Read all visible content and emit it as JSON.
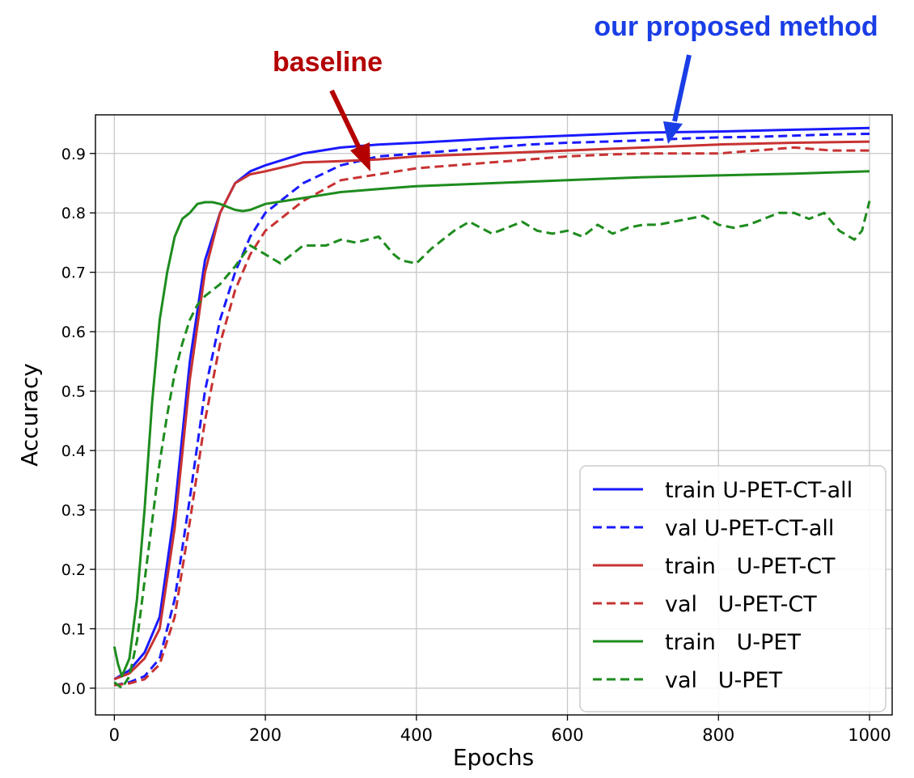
{
  "chart_data": {
    "type": "line",
    "xlabel": "Epochs",
    "ylabel": "Accuracy",
    "xlim": [
      -25,
      1030
    ],
    "ylim": [
      -0.045,
      0.965
    ],
    "xticks": [
      0,
      200,
      400,
      600,
      800,
      1000
    ],
    "yticks": [
      0.0,
      0.1,
      0.2,
      0.3,
      0.4,
      0.5,
      0.6,
      0.7,
      0.8,
      0.9
    ],
    "grid": true,
    "legend_position": "lower-right",
    "series": [
      {
        "name": "train U-PET-CT-all",
        "color": "#1a1aff",
        "dash": "solid",
        "x": [
          0,
          20,
          40,
          60,
          80,
          100,
          120,
          140,
          160,
          180,
          200,
          250,
          300,
          350,
          400,
          500,
          600,
          700,
          800,
          900,
          1000
        ],
        "y": [
          0.015,
          0.03,
          0.06,
          0.12,
          0.3,
          0.55,
          0.72,
          0.8,
          0.85,
          0.87,
          0.88,
          0.9,
          0.91,
          0.915,
          0.918,
          0.925,
          0.93,
          0.935,
          0.937,
          0.94,
          0.943
        ]
      },
      {
        "name": "val U-PET-CT-all",
        "color": "#1a1aff",
        "dash": "dashed",
        "x": [
          0,
          20,
          40,
          60,
          80,
          100,
          120,
          140,
          160,
          180,
          200,
          250,
          300,
          350,
          400,
          450,
          500,
          550,
          600,
          650,
          700,
          750,
          800,
          850,
          900,
          950,
          1000
        ],
        "y": [
          0.005,
          0.01,
          0.02,
          0.05,
          0.15,
          0.32,
          0.5,
          0.62,
          0.7,
          0.76,
          0.8,
          0.85,
          0.88,
          0.895,
          0.9,
          0.905,
          0.91,
          0.915,
          0.918,
          0.92,
          0.922,
          0.925,
          0.927,
          0.928,
          0.93,
          0.932,
          0.933
        ]
      },
      {
        "name": "train   U-PET-CT",
        "color": "#c83232",
        "dash": "solid",
        "x": [
          0,
          20,
          40,
          60,
          80,
          100,
          120,
          140,
          160,
          180,
          200,
          250,
          300,
          350,
          400,
          500,
          600,
          700,
          800,
          900,
          1000
        ],
        "y": [
          0.015,
          0.025,
          0.05,
          0.1,
          0.27,
          0.52,
          0.7,
          0.8,
          0.85,
          0.865,
          0.87,
          0.885,
          0.887,
          0.89,
          0.895,
          0.9,
          0.905,
          0.91,
          0.915,
          0.918,
          0.92
        ]
      },
      {
        "name": "val   U-PET-CT",
        "color": "#c83232",
        "dash": "dashed",
        "x": [
          0,
          20,
          40,
          60,
          80,
          100,
          120,
          140,
          160,
          180,
          200,
          250,
          300,
          350,
          400,
          450,
          500,
          550,
          600,
          650,
          700,
          750,
          800,
          850,
          900,
          950,
          1000
        ],
        "y": [
          0.005,
          0.008,
          0.015,
          0.04,
          0.12,
          0.28,
          0.45,
          0.58,
          0.67,
          0.73,
          0.77,
          0.82,
          0.855,
          0.865,
          0.875,
          0.88,
          0.885,
          0.89,
          0.895,
          0.898,
          0.9,
          0.9,
          0.9,
          0.905,
          0.91,
          0.905,
          0.905
        ]
      },
      {
        "name": "train   U-PET",
        "color": "#1e8c1e",
        "dash": "solid",
        "x": [
          0,
          5,
          10,
          20,
          30,
          40,
          50,
          60,
          70,
          80,
          90,
          100,
          110,
          120,
          130,
          140,
          150,
          160,
          170,
          180,
          200,
          250,
          300,
          350,
          400,
          500,
          600,
          700,
          800,
          900,
          1000
        ],
        "y": [
          0.07,
          0.04,
          0.02,
          0.05,
          0.15,
          0.3,
          0.48,
          0.62,
          0.7,
          0.76,
          0.79,
          0.8,
          0.815,
          0.818,
          0.818,
          0.815,
          0.81,
          0.805,
          0.803,
          0.805,
          0.815,
          0.825,
          0.835,
          0.84,
          0.845,
          0.85,
          0.855,
          0.86,
          0.863,
          0.866,
          0.87
        ]
      },
      {
        "name": "val   U-PET",
        "color": "#1e8c1e",
        "dash": "dashed",
        "x": [
          0,
          10,
          20,
          30,
          40,
          50,
          60,
          70,
          80,
          90,
          100,
          110,
          120,
          130,
          140,
          160,
          180,
          200,
          220,
          250,
          280,
          300,
          320,
          350,
          370,
          380,
          400,
          420,
          450,
          470,
          500,
          520,
          540,
          560,
          580,
          600,
          620,
          640,
          660,
          680,
          700,
          720,
          740,
          760,
          780,
          800,
          820,
          840,
          860,
          880,
          900,
          920,
          940,
          960,
          980,
          990,
          1000
        ],
        "y": [
          0.01,
          0.0,
          0.02,
          0.08,
          0.18,
          0.28,
          0.38,
          0.46,
          0.53,
          0.58,
          0.62,
          0.645,
          0.66,
          0.67,
          0.68,
          0.71,
          0.745,
          0.73,
          0.715,
          0.745,
          0.745,
          0.755,
          0.75,
          0.76,
          0.73,
          0.72,
          0.715,
          0.74,
          0.77,
          0.785,
          0.765,
          0.775,
          0.785,
          0.77,
          0.765,
          0.77,
          0.76,
          0.78,
          0.765,
          0.775,
          0.78,
          0.78,
          0.785,
          0.79,
          0.795,
          0.78,
          0.775,
          0.78,
          0.79,
          0.8,
          0.8,
          0.79,
          0.8,
          0.77,
          0.755,
          0.77,
          0.82
        ]
      }
    ]
  },
  "annotations": {
    "baseline": {
      "text": "baseline",
      "color": "#b40000"
    },
    "proposed": {
      "text": "our proposed method",
      "color": "#1a3ee6"
    }
  }
}
